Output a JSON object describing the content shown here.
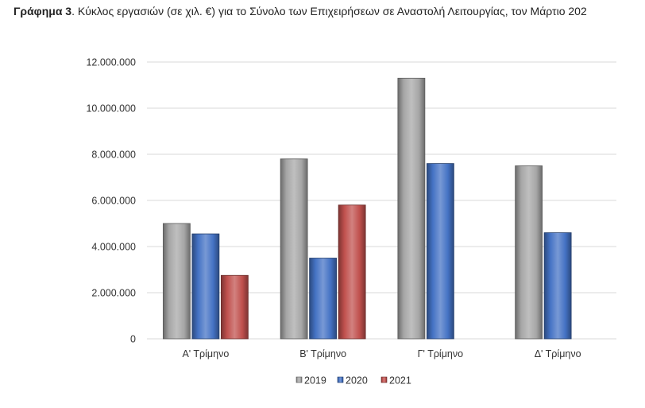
{
  "title": {
    "prefix": "Γράφημα 3",
    "text": ".  Κύκλος εργασιών (σε χιλ. €) για το Σύνολο των Επιχειρήσεων σε Αναστολή Λειτουργίας, τον Μάρτιο 202"
  },
  "chart_data": {
    "type": "bar",
    "categories": [
      "Α' Τρίμηνο",
      "Β' Τρίμηνο",
      "Γ' Τρίμηνο",
      "Δ' Τρίμηνο"
    ],
    "series": [
      {
        "name": "2019",
        "color": "#a6a6a6",
        "values": [
          5000000,
          7800000,
          11300000,
          7500000
        ]
      },
      {
        "name": "2020",
        "color": "#4472c4",
        "values": [
          4550000,
          3500000,
          7600000,
          4600000
        ]
      },
      {
        "name": "2021",
        "color": "#c0504d",
        "values": [
          2750000,
          5800000,
          null,
          null
        ]
      }
    ],
    "ylim": [
      0,
      12000000
    ],
    "yticks": [
      "0",
      "2.000.000",
      "4.000.000",
      "6.000.000",
      "8.000.000",
      "10.000.000",
      "12.000.000"
    ],
    "grid": true,
    "legend": "bottom"
  }
}
